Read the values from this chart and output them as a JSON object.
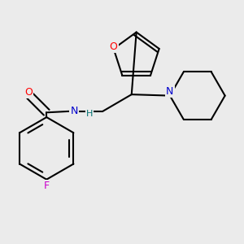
{
  "bg_color": "#ebebeb",
  "bond_color": "#000000",
  "o_color": "#ff0000",
  "n_color": "#0000cc",
  "f_color": "#cc00cc",
  "line_width": 1.5,
  "figsize": [
    3.0,
    3.0
  ],
  "dpi": 100,
  "xlim": [
    0.0,
    1.0
  ],
  "ylim": [
    0.05,
    1.0
  ]
}
